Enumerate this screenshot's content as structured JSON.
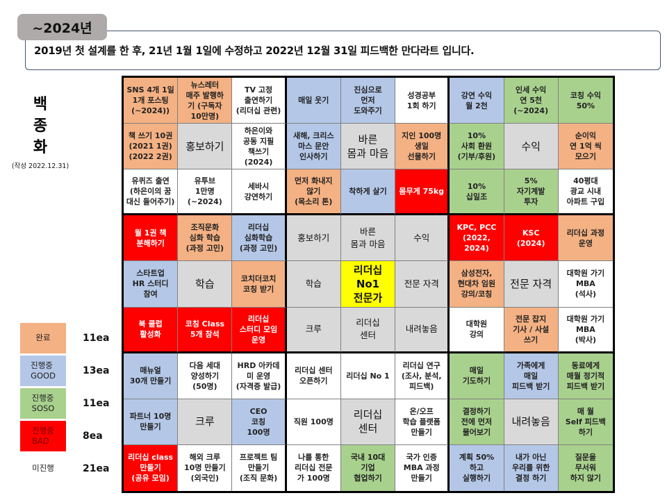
{
  "header": {
    "year_tag": "~2024년",
    "intro": "2019년 첫 설계를 한 후, 21년 1월 1일에 수정하고 2022년 12월 31일 피드백한 만다라트 입니다."
  },
  "author": {
    "name_chars": [
      "백",
      "종",
      "화"
    ],
    "date": "(작성 2022.12.31)"
  },
  "colors": {
    "완료": "#f4b183",
    "진행중_GOOD": "#b4c7e7",
    "진행중_SOSO": "#a9d18e",
    "진행중_BAD": "#ff0000",
    "미진행": "#ffffff",
    "sub_goal": "#d9d9d9",
    "core_goal": "#ffff00"
  },
  "legend": [
    {
      "label": "완료",
      "count": "11ea",
      "color": "#f4b183"
    },
    {
      "label": "진행중\nGOOD",
      "count": "13ea",
      "color": "#b4c7e7"
    },
    {
      "label": "진행중\nSOSO",
      "count": "11ea",
      "color": "#a9d18e"
    },
    {
      "label": "진행중\nBAD",
      "count": "8ea",
      "color": "#ff0000"
    },
    {
      "label": "미진행",
      "count": "21ea",
      "color": "#ffffff"
    }
  ],
  "mandalart": {
    "cells": [
      [
        {
          "text": "SNS 4개 1일\n1개 포스팅\n(~2024))",
          "status": "orange"
        },
        {
          "text": "뉴스레터\n매주 발행하\n기 (구독자\n10만명)",
          "status": "orange"
        },
        {
          "text": "TV 고정\n출연하기\n(리더십 관련)",
          "status": "white"
        },
        {
          "text": "매일 웃기",
          "status": "blue"
        },
        {
          "text": "진심으로\n먼저\n도와주기",
          "status": "blue"
        },
        {
          "text": "성경공부\n1회 하기",
          "status": "white"
        },
        {
          "text": "강연 수익\n월 2천",
          "status": "blue"
        },
        {
          "text": "인세 수익\n연 5천\n(~2024)",
          "status": "green"
        },
        {
          "text": "코칭 수익\n50%",
          "status": "green"
        }
      ],
      [
        {
          "text": "책 쓰기 10권\n(2021 1권)\n(2022 2권)",
          "status": "orange"
        },
        {
          "text": "홍보하기",
          "status": "gray",
          "kind": "center"
        },
        {
          "text": "하은이와\n공동 지필\n책쓰기\n(2024)",
          "status": "white"
        },
        {
          "text": "새해, 크리스\n마스 문안\n인사하기",
          "status": "blue"
        },
        {
          "text": "바른\n몸과 마음",
          "status": "gray",
          "kind": "center"
        },
        {
          "text": "지인 100명\n생일\n선물하기",
          "status": "orange"
        },
        {
          "text": "10%\n사회 환원\n(기부/후원)",
          "status": "green"
        },
        {
          "text": "수익",
          "status": "gray",
          "kind": "center"
        },
        {
          "text": "순이익\n연 1억 씩\n모으기",
          "status": "orange"
        }
      ],
      [
        {
          "text": "유퀴즈 출연\n(하은이의 꿈\n대신 들어주기)",
          "status": "white"
        },
        {
          "text": "유투브\n1만명\n(~2024)",
          "status": "white"
        },
        {
          "text": "세바시\n강연하기",
          "status": "white"
        },
        {
          "text": "먼저 화내지\n않기\n(목소리 톤)",
          "status": "orange"
        },
        {
          "text": "착하게 살기",
          "status": "blue"
        },
        {
          "text": "몸무게 75kg",
          "status": "red"
        },
        {
          "text": "10%\n십일조",
          "status": "green"
        },
        {
          "text": "5%\n자기계발\n투자",
          "status": "green"
        },
        {
          "text": "40평대\n광교 시내\n아파트 구입",
          "status": "white"
        }
      ],
      [
        {
          "text": "월 1권 책\n분해하기",
          "status": "red"
        },
        {
          "text": "조직문화\n심화 학습\n(과정 고민)",
          "status": "orange"
        },
        {
          "text": "리더십\n심화학습\n(과정 고민)",
          "status": "blue"
        },
        {
          "text": "홍보하기",
          "status": "gray",
          "kind": "sub"
        },
        {
          "text": "바른\n몸과 마음",
          "status": "gray",
          "kind": "sub"
        },
        {
          "text": "수익",
          "status": "gray",
          "kind": "sub"
        },
        {
          "text": "KPC, PCC\n(2022, 2024)",
          "status": "red"
        },
        {
          "text": "KSC\n(2024)",
          "status": "red"
        },
        {
          "text": "리더십 과정\n운영",
          "status": "orange"
        }
      ],
      [
        {
          "text": "스타트업\nHR 스터디\n참여",
          "status": "blue"
        },
        {
          "text": "학습",
          "status": "gray",
          "kind": "center"
        },
        {
          "text": "코치더코치\n코칭 받기",
          "status": "orange"
        },
        {
          "text": "학습",
          "status": "gray",
          "kind": "sub"
        },
        {
          "text": "리더십\nNo1\n전문가",
          "status": "yellow",
          "kind": "core"
        },
        {
          "text": "전문 자격",
          "status": "gray",
          "kind": "sub"
        },
        {
          "text": "삼성전자,\n현대차 임원\n강의/코칭",
          "status": "orange"
        },
        {
          "text": "전문 자격",
          "status": "gray",
          "kind": "center"
        },
        {
          "text": "대학원 가기\nMBA\n(석사)",
          "status": "white"
        }
      ],
      [
        {
          "text": "북 클럽\n활성화",
          "status": "red"
        },
        {
          "text": "코칭 Class\n5개 참석",
          "status": "red"
        },
        {
          "text": "리더십\n스터디 모임\n운영",
          "status": "red"
        },
        {
          "text": "크루",
          "status": "gray",
          "kind": "sub"
        },
        {
          "text": "리더십\n센터",
          "status": "gray",
          "kind": "sub"
        },
        {
          "text": "내려놓음",
          "status": "gray",
          "kind": "sub"
        },
        {
          "text": "대학원\n강의",
          "status": "white"
        },
        {
          "text": "전문 잡지\n기사 / 사설\n쓰기",
          "status": "orange"
        },
        {
          "text": "대학원 가기\nMBA\n(박사)",
          "status": "white"
        }
      ],
      [
        {
          "text": "매뉴얼\n30개 만들기",
          "status": "blue"
        },
        {
          "text": "다음 세대\n양성하기\n(50명)",
          "status": "white"
        },
        {
          "text": "HRD 아카데\n미 운영\n(자격증 발급)",
          "status": "white"
        },
        {
          "text": "리더십 센터\n오픈하기",
          "status": "white"
        },
        {
          "text": "리더십 No 1",
          "status": "white"
        },
        {
          "text": "리더십 연구\n(조사, 분석,\n피드백)",
          "status": "white"
        },
        {
          "text": "매일\n기도하기",
          "status": "green"
        },
        {
          "text": "가족에게\n매일\n피드백 받기",
          "status": "blue"
        },
        {
          "text": "동료에게\n매월 정기적\n피드백 받기",
          "status": "green"
        }
      ],
      [
        {
          "text": "파트너 10명\n만들기",
          "status": "blue"
        },
        {
          "text": "크루",
          "status": "gray",
          "kind": "center"
        },
        {
          "text": "CEO\n코칭\n100명",
          "status": "blue"
        },
        {
          "text": "직원 100명",
          "status": "white"
        },
        {
          "text": "리더십\n센터",
          "status": "gray",
          "kind": "center"
        },
        {
          "text": "온/오프\n학습 플랫폼\n만들기",
          "status": "white"
        },
        {
          "text": "결정하기\n전에 먼저\n물어보기",
          "status": "green"
        },
        {
          "text": "내려놓음",
          "status": "gray",
          "kind": "center"
        },
        {
          "text": "매 월\nSelf 피드백\n하기",
          "status": "green"
        }
      ],
      [
        {
          "text": "리더십 class\n만들기\n(공유 모임)",
          "status": "red"
        },
        {
          "text": "해외 크루\n10명 만들기\n(외국인)",
          "status": "white"
        },
        {
          "text": "프로젝트 팀\n만들기\n(조직 문화)",
          "status": "white"
        },
        {
          "text": "나를 통한\n리더십 전문\n가 100명",
          "status": "white"
        },
        {
          "text": "국내 10대\n기업\n협업하기",
          "status": "green"
        },
        {
          "text": "국가 인증\nMBA 과정\n만들기",
          "status": "white"
        },
        {
          "text": "계획 50%\n하고\n실행하기",
          "status": "blue"
        },
        {
          "text": "내가 아닌\n우리를 위한\n결정 하기",
          "status": "blue"
        },
        {
          "text": "질문을\n무서워\n하지 않기",
          "status": "green"
        }
      ]
    ]
  }
}
